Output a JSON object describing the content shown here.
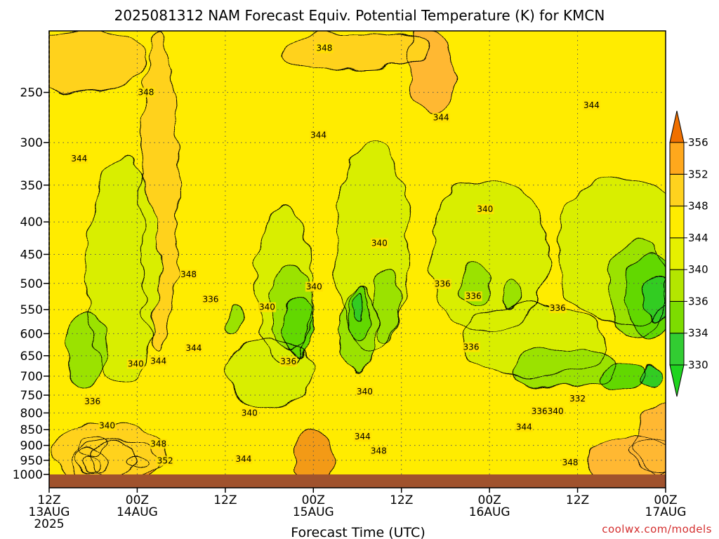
{
  "chart_data": {
    "type": "contour",
    "title": "2025081312 NAM Forecast Equiv. Potential Temperature (K) for KMCN",
    "xlabel": "Forecast Time (UTC)",
    "ylabel": "",
    "x_ticks": [
      {
        "hour": 0,
        "l1": "12Z",
        "l2": "13AUG",
        "l3": "2025"
      },
      {
        "hour": 12,
        "l1": "00Z",
        "l2": "14AUG",
        "l3": ""
      },
      {
        "hour": 24,
        "l1": "12Z",
        "l2": "",
        "l3": ""
      },
      {
        "hour": 36,
        "l1": "00Z",
        "l2": "15AUG",
        "l3": ""
      },
      {
        "hour": 48,
        "l1": "12Z",
        "l2": "",
        "l3": ""
      },
      {
        "hour": 60,
        "l1": "00Z",
        "l2": "16AUG",
        "l3": ""
      },
      {
        "hour": 72,
        "l1": "12Z",
        "l2": "",
        "l3": ""
      },
      {
        "hour": 84,
        "l1": "00Z",
        "l2": "17AUG",
        "l3": ""
      }
    ],
    "xlim": [
      0,
      84
    ],
    "y_ticks": [
      250,
      300,
      350,
      400,
      450,
      500,
      550,
      600,
      650,
      700,
      750,
      800,
      850,
      900,
      950,
      1000
    ],
    "ylim": [
      200,
      1000
    ],
    "y_scale": "log",
    "y_inverted": true,
    "grid": true,
    "colorbar": {
      "ticks": [
        330,
        334,
        336,
        340,
        344,
        348,
        352,
        356
      ],
      "colors": [
        "#32cd32",
        "#7ddc00",
        "#b4e600",
        "#e6f000",
        "#ffec00",
        "#ffd21e",
        "#ffa81c"
      ],
      "low_color": "#1fd41f",
      "high_color": "#f07000"
    },
    "series": [
      {
        "level": 356,
        "color": "#ed7a00",
        "cx": [
          9,
          6,
          6,
          12
        ],
        "cy": [
          945,
          960,
          905,
          960
        ],
        "rx": [
          3,
          1.2,
          1.8,
          1.4
        ],
        "ry": [
          60,
          22,
          30,
          22
        ]
      },
      {
        "level": 352,
        "color": "#f39a12",
        "cx": [
          36,
          6,
          83,
          9
        ],
        "cy": [
          945,
          945,
          935,
          960
        ],
        "rx": [
          2.8,
          2.5,
          3.5,
          6
        ],
        "ry": [
          90,
          40,
          60,
          80
        ]
      },
      {
        "level": 348,
        "color": "#ffb830",
        "cx": [
          52,
          79,
          84
        ],
        "cy": [
          230,
          945,
          900
        ],
        "rx": [
          3,
          6,
          4
        ],
        "ry": [
          40,
          80,
          120
        ]
      },
      {
        "level": 348,
        "color": "#ffd21e",
        "cx": [
          42,
          15,
          8,
          5
        ],
        "cy": [
          200,
          420,
          930,
          220
        ],
        "rx": [
          10,
          2.5,
          8,
          8
        ],
        "ry": [
          30,
          220,
          100,
          30
        ]
      },
      {
        "level": 340,
        "color": "#d9ee00",
        "cx": [
          10,
          32,
          44,
          60,
          78,
          66,
          30
        ],
        "cy": [
          520,
          520,
          470,
          470,
          460,
          620,
          700
        ],
        "rx": [
          5,
          4,
          5,
          8,
          9,
          10,
          6
        ],
        "ry": [
          200,
          140,
          170,
          130,
          120,
          80,
          90
        ]
      },
      {
        "level": 336,
        "color": "#9be200",
        "cx": [
          5,
          33,
          42,
          46,
          58,
          80,
          70,
          63,
          25
        ],
        "cy": [
          640,
          550,
          600,
          545,
          500,
          520,
          680,
          520,
          570
        ],
        "rx": [
          2.8,
          3,
          2.5,
          1.8,
          1.8,
          4,
          7,
          1.5,
          1
        ],
        "ry": [
          90,
          80,
          90,
          70,
          40,
          90,
          50,
          25,
          30
        ]
      },
      {
        "level": 334,
        "color": "#62d800",
        "cx": [
          82,
          34,
          42,
          78
        ],
        "cy": [
          530,
          580,
          560,
          700
        ],
        "rx": [
          3.5,
          2,
          1.4,
          3
        ],
        "ry": [
          80,
          60,
          50,
          30
        ]
      },
      {
        "level": 330,
        "color": "#33cc22",
        "cx": [
          83,
          82,
          42
        ],
        "cy": [
          530,
          700,
          545
        ],
        "rx": [
          2.2,
          1.5,
          0.7
        ],
        "ry": [
          40,
          25,
          25
        ]
      }
    ],
    "contour_labels": [
      {
        "text": "348",
        "hour": 37.5,
        "p": 213
      },
      {
        "text": "348",
        "hour": 13.2,
        "p": 250
      },
      {
        "text": "344",
        "hour": 36.7,
        "p": 292
      },
      {
        "text": "344",
        "hour": 53.4,
        "p": 274
      },
      {
        "text": "344",
        "hour": 73.9,
        "p": 262
      },
      {
        "text": "344",
        "hour": 4.1,
        "p": 318
      },
      {
        "text": "340",
        "hour": 59.4,
        "p": 382
      },
      {
        "text": "340",
        "hour": 45.0,
        "p": 432
      },
      {
        "text": "348",
        "hour": 19.0,
        "p": 484
      },
      {
        "text": "336",
        "hour": 22.0,
        "p": 530
      },
      {
        "text": "340",
        "hour": 29.7,
        "p": 545
      },
      {
        "text": "340",
        "hour": 36.1,
        "p": 506
      },
      {
        "text": "336",
        "hour": 53.6,
        "p": 501
      },
      {
        "text": "336",
        "hour": 57.8,
        "p": 524
      },
      {
        "text": "336",
        "hour": 69.3,
        "p": 547
      },
      {
        "text": "336",
        "hour": 57.5,
        "p": 630
      },
      {
        "text": "344",
        "hour": 19.7,
        "p": 632
      },
      {
        "text": "336",
        "hour": 32.6,
        "p": 664
      },
      {
        "text": "340",
        "hour": 11.8,
        "p": 670
      },
      {
        "text": "344",
        "hour": 14.9,
        "p": 663
      },
      {
        "text": "340",
        "hour": 43.0,
        "p": 740
      },
      {
        "text": "336",
        "hour": 5.9,
        "p": 767
      },
      {
        "text": "332",
        "hour": 72.0,
        "p": 760
      },
      {
        "text": "340",
        "hour": 27.3,
        "p": 800
      },
      {
        "text": "336",
        "hour": 66.8,
        "p": 795
      },
      {
        "text": "340",
        "hour": 69.0,
        "p": 795
      },
      {
        "text": "340",
        "hour": 7.9,
        "p": 838
      },
      {
        "text": "344",
        "hour": 64.7,
        "p": 842
      },
      {
        "text": "344",
        "hour": 42.7,
        "p": 872
      },
      {
        "text": "348",
        "hour": 14.9,
        "p": 895
      },
      {
        "text": "348",
        "hour": 44.9,
        "p": 918
      },
      {
        "text": "352",
        "hour": 15.8,
        "p": 952
      },
      {
        "text": "344",
        "hour": 26.5,
        "p": 946
      },
      {
        "text": "348",
        "hour": 71.0,
        "p": 958
      }
    ]
  },
  "credit": "coolwx.com/models"
}
